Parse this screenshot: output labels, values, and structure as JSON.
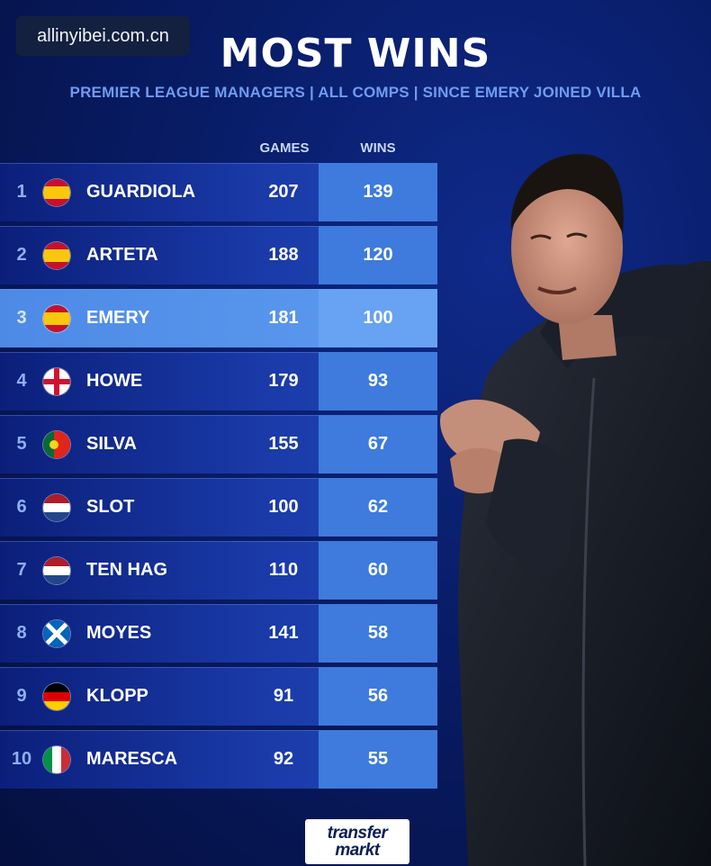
{
  "watermark": "allinyibei.com.cn",
  "title": "MOST WINS",
  "subtitle": "PREMIER LEAGUE MANAGERS | ALL COMPS | SINCE EMERY JOINED VILLA",
  "columns": {
    "games": "GAMES",
    "wins": "WINS"
  },
  "rows": [
    {
      "rank": "1",
      "name": "GUARDIOLA",
      "games": "207",
      "wins": "139",
      "flag": "spain"
    },
    {
      "rank": "2",
      "name": "ARTETA",
      "games": "188",
      "wins": "120",
      "flag": "spain"
    },
    {
      "rank": "3",
      "name": "EMERY",
      "games": "181",
      "wins": "100",
      "flag": "spain"
    },
    {
      "rank": "4",
      "name": "HOWE",
      "games": "179",
      "wins": "93",
      "flag": "england"
    },
    {
      "rank": "5",
      "name": "SILVA",
      "games": "155",
      "wins": "67",
      "flag": "portugal"
    },
    {
      "rank": "6",
      "name": "SLOT",
      "games": "100",
      "wins": "62",
      "flag": "netherlands"
    },
    {
      "rank": "7",
      "name": "TEN HAG",
      "games": "110",
      "wins": "60",
      "flag": "netherlands"
    },
    {
      "rank": "8",
      "name": "MOYES",
      "games": "141",
      "wins": "58",
      "flag": "scotland"
    },
    {
      "rank": "9",
      "name": "KLOPP",
      "games": "91",
      "wins": "56",
      "flag": "germany"
    },
    {
      "rank": "10",
      "name": "MARESCA",
      "games": "92",
      "wins": "55",
      "flag": "italy"
    }
  ],
  "highlight_rank": "3",
  "logo": {
    "line1": "transfer",
    "line2": "markt"
  },
  "colors": {
    "accent": "#3e7bdc",
    "highlight": "#5d9bf0",
    "subtitle": "#6f9cf0"
  }
}
